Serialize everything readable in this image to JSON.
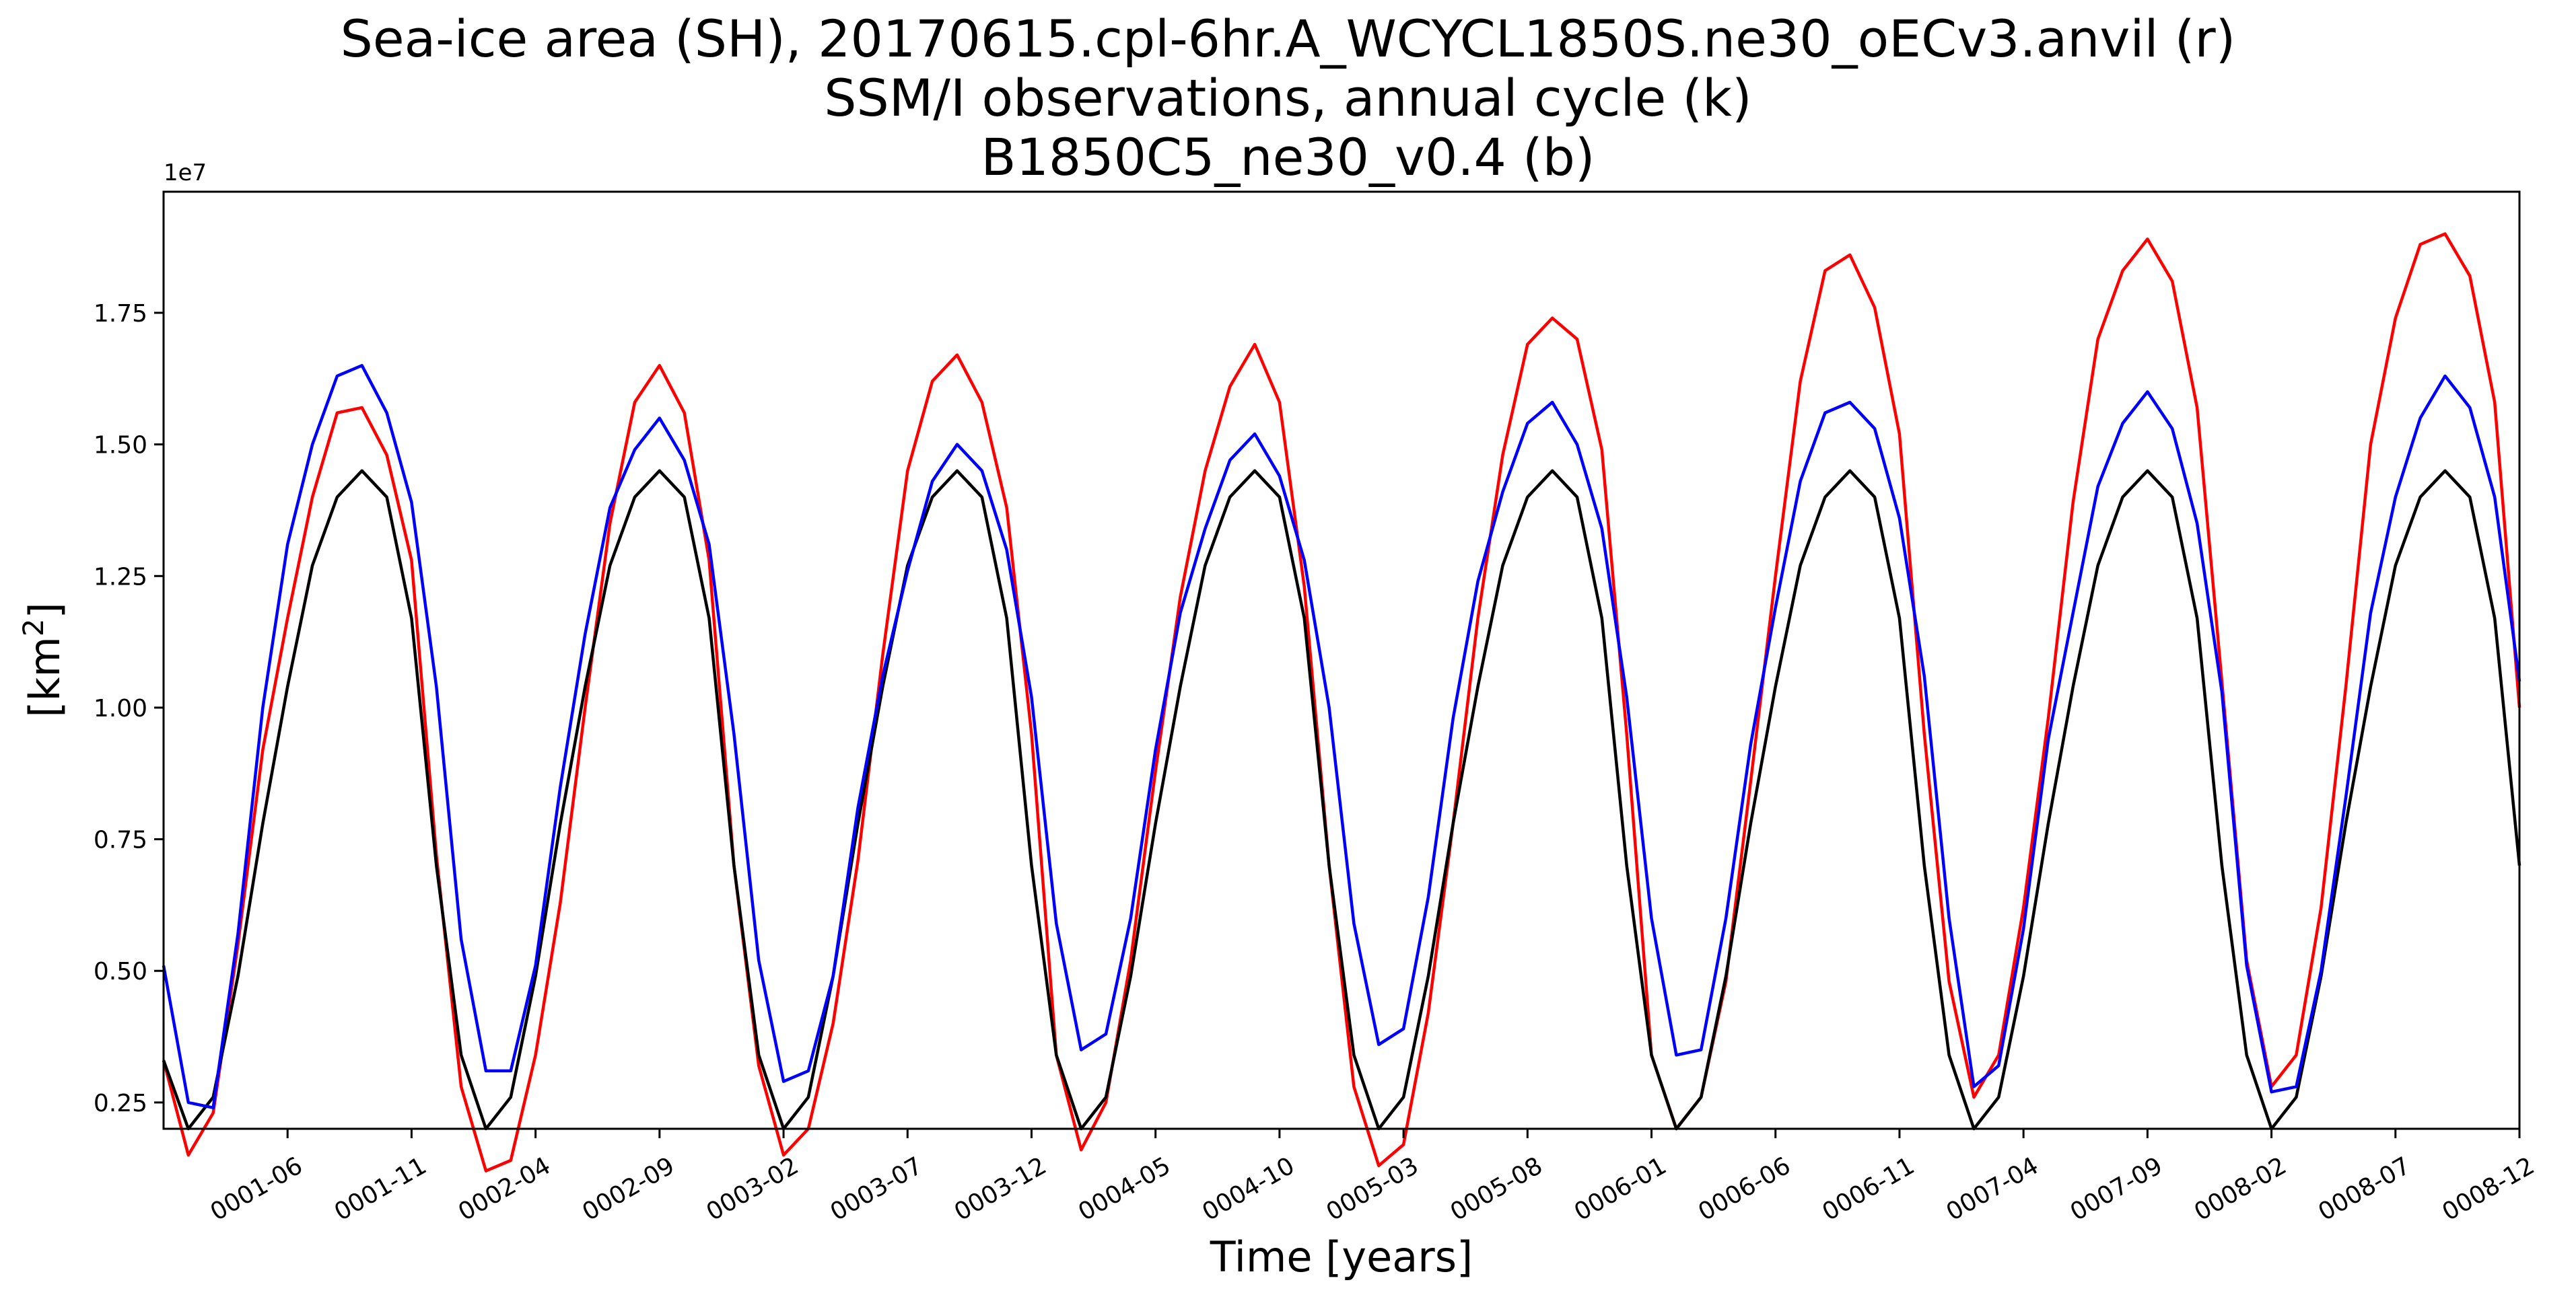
{
  "figure": {
    "title_lines": [
      "Sea-ice area (SH), 20170615.cpl-6hr.A_WCYCL1850S.ne30_oECv3.anvil (r)",
      "SSM/I observations, annual cycle (k)",
      "B1850C5_ne30_v0.4 (b)"
    ]
  },
  "chart_data": {
    "type": "line",
    "title": "Sea-ice area (SH), 20170615.cpl-6hr.A_WCYCL1850S.ne30_oECv3.anvil (r)\nSSM/I observations, annual cycle (k)\nB1850C5_ne30_v0.4 (b)",
    "xlabel": "Time [years]",
    "ylabel": "[km",
    "ylabel_sup": "2",
    "ylabel_end": "]",
    "y_offset_text": "1e7",
    "x_unit": "month index (1 = 0001-01)",
    "xlim": [
      1,
      96
    ],
    "ylim": [
      0.2,
      1.98
    ],
    "x_ticks": [
      {
        "x": 6,
        "label": "0001-06"
      },
      {
        "x": 11,
        "label": "0001-11"
      },
      {
        "x": 16,
        "label": "0002-04"
      },
      {
        "x": 21,
        "label": "0002-09"
      },
      {
        "x": 26,
        "label": "0003-02"
      },
      {
        "x": 31,
        "label": "0003-07"
      },
      {
        "x": 36,
        "label": "0003-12"
      },
      {
        "x": 41,
        "label": "0004-05"
      },
      {
        "x": 46,
        "label": "0004-10"
      },
      {
        "x": 51,
        "label": "0005-03"
      },
      {
        "x": 56,
        "label": "0005-08"
      },
      {
        "x": 61,
        "label": "0006-01"
      },
      {
        "x": 66,
        "label": "0006-06"
      },
      {
        "x": 71,
        "label": "0006-11"
      },
      {
        "x": 76,
        "label": "0007-04"
      },
      {
        "x": 81,
        "label": "0007-09"
      },
      {
        "x": 86,
        "label": "0008-02"
      },
      {
        "x": 91,
        "label": "0008-07"
      },
      {
        "x": 96,
        "label": "0008-12"
      }
    ],
    "y_ticks": [
      {
        "y": 0.25,
        "label": "0.25"
      },
      {
        "y": 0.5,
        "label": "0.50"
      },
      {
        "y": 0.75,
        "label": "0.75"
      },
      {
        "y": 1.0,
        "label": "1.00"
      },
      {
        "y": 1.25,
        "label": "1.25"
      },
      {
        "y": 1.5,
        "label": "1.50"
      },
      {
        "y": 1.75,
        "label": "1.75"
      }
    ],
    "grid": false,
    "x": [
      1,
      2,
      3,
      4,
      5,
      6,
      7,
      8,
      9,
      10,
      11,
      12,
      13,
      14,
      15,
      16,
      17,
      18,
      19,
      20,
      21,
      22,
      23,
      24,
      25,
      26,
      27,
      28,
      29,
      30,
      31,
      32,
      33,
      34,
      35,
      36,
      37,
      38,
      39,
      40,
      41,
      42,
      43,
      44,
      45,
      46,
      47,
      48,
      49,
      50,
      51,
      52,
      53,
      54,
      55,
      56,
      57,
      58,
      59,
      60,
      61,
      62,
      63,
      64,
      65,
      66,
      67,
      68,
      69,
      70,
      71,
      72,
      73,
      74,
      75,
      76,
      77,
      78,
      79,
      80,
      81,
      82,
      83,
      84,
      85,
      86,
      87,
      88,
      89,
      90,
      91,
      92,
      93,
      94,
      95,
      96
    ],
    "series": [
      {
        "color": "#ff0000",
        "values": [
          0.33,
          0.15,
          0.23,
          0.55,
          0.92,
          1.17,
          1.4,
          1.56,
          1.57,
          1.48,
          1.28,
          0.72,
          0.28,
          0.12,
          0.14,
          0.34,
          0.63,
          1.0,
          1.35,
          1.58,
          1.65,
          1.56,
          1.28,
          0.7,
          0.32,
          0.15,
          0.2,
          0.4,
          0.71,
          1.1,
          1.45,
          1.62,
          1.67,
          1.58,
          1.38,
          0.95,
          0.34,
          0.16,
          0.25,
          0.52,
          0.88,
          1.21,
          1.45,
          1.61,
          1.69,
          1.58,
          1.23,
          0.7,
          0.28,
          0.13,
          0.17,
          0.42,
          0.78,
          1.17,
          1.48,
          1.69,
          1.74,
          1.7,
          1.49,
          0.95,
          0.34,
          0.2,
          0.26,
          0.48,
          0.86,
          1.25,
          1.62,
          1.83,
          1.86,
          1.76,
          1.52,
          0.95,
          0.48,
          0.26,
          0.34,
          0.62,
          0.98,
          1.39,
          1.7,
          1.83,
          1.89,
          1.81,
          1.57,
          1.05,
          0.52,
          0.28,
          0.34,
          0.62,
          1.04,
          1.5,
          1.74,
          1.88,
          1.9,
          1.82,
          1.58,
          1.0
        ]
      },
      {
        "color": "#000000",
        "values": [
          0.33,
          0.2,
          0.26,
          0.49,
          0.78,
          1.04,
          1.27,
          1.4,
          1.45,
          1.4,
          1.17,
          0.7,
          0.34,
          0.2,
          0.26,
          0.49,
          0.78,
          1.04,
          1.27,
          1.4,
          1.45,
          1.4,
          1.17,
          0.7,
          0.34,
          0.2,
          0.26,
          0.49,
          0.78,
          1.04,
          1.27,
          1.4,
          1.45,
          1.4,
          1.17,
          0.7,
          0.34,
          0.2,
          0.26,
          0.49,
          0.78,
          1.04,
          1.27,
          1.4,
          1.45,
          1.4,
          1.17,
          0.7,
          0.34,
          0.2,
          0.26,
          0.49,
          0.78,
          1.04,
          1.27,
          1.4,
          1.45,
          1.4,
          1.17,
          0.7,
          0.34,
          0.2,
          0.26,
          0.49,
          0.78,
          1.04,
          1.27,
          1.4,
          1.45,
          1.4,
          1.17,
          0.7,
          0.34,
          0.2,
          0.26,
          0.49,
          0.78,
          1.04,
          1.27,
          1.4,
          1.45,
          1.4,
          1.17,
          0.7,
          0.34,
          0.2,
          0.26,
          0.49,
          0.78,
          1.04,
          1.27,
          1.4,
          1.45,
          1.4,
          1.17,
          0.7
        ]
      },
      {
        "color": "#0000ff",
        "values": [
          0.51,
          0.25,
          0.24,
          0.57,
          1.0,
          1.31,
          1.5,
          1.63,
          1.65,
          1.56,
          1.39,
          1.04,
          0.56,
          0.31,
          0.31,
          0.51,
          0.85,
          1.14,
          1.38,
          1.49,
          1.55,
          1.47,
          1.31,
          0.95,
          0.52,
          0.29,
          0.31,
          0.49,
          0.81,
          1.06,
          1.26,
          1.43,
          1.5,
          1.45,
          1.3,
          1.02,
          0.59,
          0.35,
          0.38,
          0.6,
          0.92,
          1.18,
          1.34,
          1.47,
          1.52,
          1.44,
          1.28,
          1.0,
          0.59,
          0.36,
          0.39,
          0.64,
          0.98,
          1.24,
          1.41,
          1.54,
          1.58,
          1.5,
          1.34,
          1.02,
          0.6,
          0.34,
          0.35,
          0.6,
          0.93,
          1.19,
          1.43,
          1.56,
          1.58,
          1.53,
          1.36,
          1.06,
          0.6,
          0.28,
          0.32,
          0.58,
          0.94,
          1.18,
          1.42,
          1.54,
          1.6,
          1.53,
          1.35,
          1.03,
          0.51,
          0.27,
          0.28,
          0.5,
          0.83,
          1.18,
          1.4,
          1.55,
          1.63,
          1.57,
          1.4,
          1.05
        ]
      }
    ]
  }
}
